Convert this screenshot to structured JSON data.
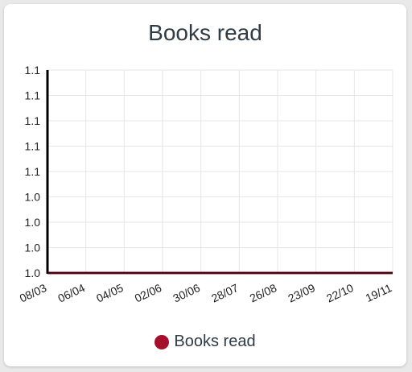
{
  "chart_data": {
    "type": "line",
    "title": "Books read",
    "xlabel": "",
    "ylabel": "",
    "x": [
      "08/03",
      "06/04",
      "04/05",
      "02/06",
      "30/06",
      "28/07",
      "26/08",
      "23/09",
      "22/10",
      "19/11"
    ],
    "x_tick_labels": [
      "08/03",
      "06/04",
      "04/05",
      "02/06",
      "30/06",
      "28/07",
      "26/08",
      "23/09",
      "22/10",
      "19/11"
    ],
    "y_tick_labels": [
      "1.0",
      "1.0",
      "1.0",
      "1.0",
      "1.1",
      "1.1",
      "1.1",
      "1.1",
      "1.1"
    ],
    "ylim": [
      1.0,
      1.08
    ],
    "grid": true,
    "legend_position": "bottom",
    "series": [
      {
        "name": "Books read",
        "color": "#a50f2d",
        "values": [
          1.0,
          1.0,
          1.0,
          1.0,
          1.0,
          1.0,
          1.0,
          1.0,
          1.0,
          1.0
        ]
      }
    ]
  },
  "colors": {
    "series_line": "#a50f2d",
    "grid": "#e6e6e6",
    "axis": "#000000",
    "text": "#2f3b45"
  }
}
